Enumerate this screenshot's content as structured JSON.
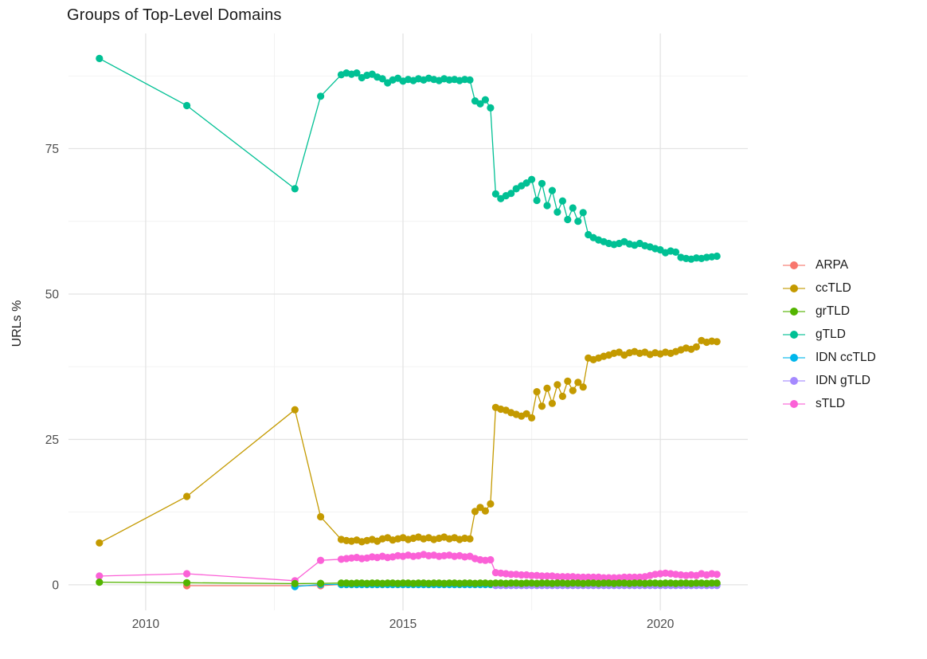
{
  "title": "Groups of Top-Level Domains",
  "y_axis_label": "URLs %",
  "colors": {
    "background": "#ffffff",
    "grid_major": "#e3e3e3",
    "grid_minor": "#f1f1f1",
    "tick_text": "#4d4d4d",
    "title_text": "#1a1a1a",
    "legend_text": "#1a1a1a"
  },
  "chart_data": {
    "type": "line",
    "title": "Groups of Top-Level Domains",
    "xlabel": "",
    "ylabel": "URLs %",
    "xlim": [
      2008.5,
      2021.7
    ],
    "ylim": [
      -4.4,
      94.8
    ],
    "x_ticks": [
      2010,
      2015,
      2020
    ],
    "x_minor_ticks": [
      2012.5,
      2017.5
    ],
    "y_ticks": [
      0,
      25,
      50,
      75
    ],
    "y_minor_ticks": [
      12.5,
      37.5,
      62.5,
      87.5
    ],
    "grid": "major+minor",
    "legend_position": "right",
    "point_radius": 4.6,
    "line_width": 1.3,
    "render_order": [
      "ARPA",
      "IDN ccTLD",
      "IDN gTLD",
      "sTLD",
      "grTLD",
      "ccTLD",
      "gTLD"
    ],
    "series": [
      {
        "name": "ARPA",
        "color": "#F8766D",
        "sparse": [
          [
            2010.8,
            -0.15
          ],
          [
            2012.9,
            -0.15
          ],
          [
            2013.4,
            -0.15
          ]
        ],
        "dense": {
          "start": 2013.8,
          "step": 0.1,
          "const": 0.05,
          "count": 74
        }
      },
      {
        "name": "ccTLD",
        "color": "#C49A00",
        "sparse": [
          [
            2009.1,
            7.2
          ],
          [
            2010.8,
            15.2
          ],
          [
            2012.9,
            30.1
          ],
          [
            2013.4,
            11.7
          ]
        ],
        "dense": {
          "start": 2013.8,
          "step": 0.1,
          "values": [
            7.8,
            7.6,
            7.5,
            7.7,
            7.4,
            7.6,
            7.8,
            7.5,
            7.9,
            8.1,
            7.7,
            7.9,
            8.1,
            7.8,
            8.0,
            8.2,
            7.9,
            8.1,
            7.8,
            8.0,
            8.2,
            7.9,
            8.1,
            7.8,
            8.0,
            7.9,
            12.6,
            13.3,
            12.7,
            13.9,
            30.5,
            30.2,
            30.0,
            29.6,
            29.3,
            29.0,
            29.4,
            28.7,
            33.2,
            30.7,
            33.8,
            31.2,
            34.4,
            32.4,
            35.0,
            33.4,
            34.8,
            34.0,
            39.0,
            38.7,
            39.0,
            39.3,
            39.5,
            39.8,
            40.0,
            39.5,
            39.9,
            40.1,
            39.8,
            40.0,
            39.6,
            39.9,
            39.7,
            40.0,
            39.8,
            40.1,
            40.4,
            40.7,
            40.5,
            40.9,
            42.0,
            41.7,
            41.9,
            41.8
          ]
        }
      },
      {
        "name": "grTLD",
        "color": "#53B400",
        "sparse": [
          [
            2009.1,
            0.45
          ],
          [
            2010.8,
            0.35
          ],
          [
            2012.9,
            0.2
          ],
          [
            2013.4,
            0.25
          ]
        ],
        "dense": {
          "start": 2013.8,
          "step": 0.1,
          "values": [
            0.3,
            0.3,
            0.25,
            0.3,
            0.3,
            0.25,
            0.3,
            0.3,
            0.25,
            0.3,
            0.3,
            0.25,
            0.3,
            0.3,
            0.25,
            0.3,
            0.3,
            0.25,
            0.3,
            0.3,
            0.25,
            0.3,
            0.3,
            0.25,
            0.3,
            0.3,
            0.25,
            0.3,
            0.3,
            0.25,
            0.3,
            0.3,
            0.25,
            0.3,
            0.3,
            0.25,
            0.3,
            0.3,
            0.25,
            0.3,
            0.3,
            0.25,
            0.3,
            0.3,
            0.25,
            0.3,
            0.3,
            0.25,
            0.3,
            0.3,
            0.25,
            0.3,
            0.3,
            0.25,
            0.3,
            0.3,
            0.25,
            0.3,
            0.3,
            0.25,
            0.3,
            0.3,
            0.25,
            0.3,
            0.3,
            0.25,
            0.3,
            0.3,
            0.25,
            0.3,
            0.3,
            0.25,
            0.3,
            0.3
          ]
        }
      },
      {
        "name": "gTLD",
        "color": "#00C094",
        "sparse": [
          [
            2009.1,
            90.5
          ],
          [
            2010.8,
            82.4
          ],
          [
            2012.9,
            68.1
          ],
          [
            2013.4,
            84.0
          ]
        ],
        "dense": {
          "start": 2013.8,
          "step": 0.1,
          "values": [
            87.7,
            88.0,
            87.8,
            88.0,
            87.2,
            87.6,
            87.8,
            87.3,
            87.0,
            86.3,
            86.8,
            87.1,
            86.6,
            86.9,
            86.7,
            87.0,
            86.8,
            87.1,
            86.9,
            86.7,
            87.0,
            86.8,
            86.9,
            86.7,
            86.9,
            86.8,
            83.2,
            82.7,
            83.4,
            82.0,
            67.2,
            66.4,
            66.9,
            67.3,
            68.1,
            68.6,
            69.1,
            69.7,
            66.1,
            69.0,
            65.2,
            67.8,
            64.1,
            66.0,
            62.8,
            64.8,
            62.5,
            64.0,
            60.2,
            59.7,
            59.3,
            59.0,
            58.7,
            58.5,
            58.7,
            59.0,
            58.6,
            58.4,
            58.7,
            58.3,
            58.1,
            57.8,
            57.6,
            57.1,
            57.4,
            57.2,
            56.3,
            56.1,
            56.0,
            56.2,
            56.1,
            56.3,
            56.4,
            56.5
          ]
        }
      },
      {
        "name": "IDN ccTLD",
        "color": "#00B6EB",
        "sparse": [
          [
            2012.9,
            -0.3
          ],
          [
            2013.4,
            0.05
          ]
        ],
        "dense": {
          "start": 2013.8,
          "step": 0.1,
          "const": 0.05,
          "count": 74
        }
      },
      {
        "name": "IDN gTLD",
        "color": "#A58AFF",
        "sparse": [],
        "dense": {
          "start": 2016.8,
          "step": 0.1,
          "const": -0.12,
          "count": 44
        }
      },
      {
        "name": "sTLD",
        "color": "#FB61D7",
        "sparse": [
          [
            2009.1,
            1.5
          ],
          [
            2010.8,
            1.9
          ],
          [
            2012.9,
            0.7
          ],
          [
            2013.4,
            4.2
          ]
        ],
        "dense": {
          "start": 2013.8,
          "step": 0.1,
          "values": [
            4.4,
            4.5,
            4.6,
            4.7,
            4.5,
            4.6,
            4.8,
            4.7,
            4.9,
            4.7,
            4.8,
            5.0,
            4.9,
            5.1,
            4.9,
            5.0,
            5.2,
            5.0,
            5.1,
            4.9,
            5.0,
            5.1,
            4.9,
            5.0,
            4.8,
            4.9,
            4.5,
            4.3,
            4.2,
            4.3,
            2.1,
            2.0,
            1.9,
            1.8,
            1.8,
            1.7,
            1.7,
            1.6,
            1.6,
            1.5,
            1.5,
            1.5,
            1.4,
            1.4,
            1.4,
            1.4,
            1.3,
            1.3,
            1.3,
            1.3,
            1.3,
            1.2,
            1.2,
            1.2,
            1.2,
            1.3,
            1.3,
            1.3,
            1.3,
            1.4,
            1.6,
            1.8,
            1.9,
            2.0,
            1.9,
            1.8,
            1.7,
            1.6,
            1.7,
            1.6,
            1.9,
            1.7,
            1.9,
            1.8
          ]
        }
      }
    ]
  }
}
